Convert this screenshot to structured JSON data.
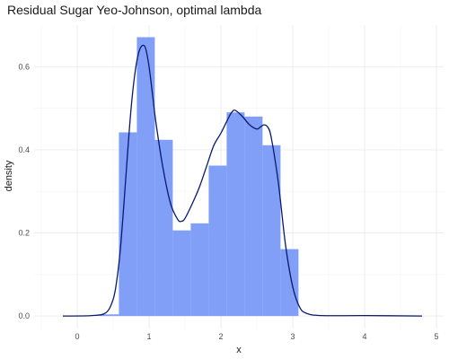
{
  "chart_data": {
    "type": "bar",
    "title": "Residual Sugar Yeo-Johnson, optimal lambda",
    "xlabel": "x",
    "ylabel": "density",
    "xlim": [
      -0.6,
      5.1
    ],
    "ylim": [
      -0.03,
      0.7
    ],
    "x_ticks": [
      0,
      1,
      2,
      3,
      4,
      5
    ],
    "y_ticks": [
      0.0,
      0.2,
      0.4,
      0.6
    ],
    "y_tick_labels": [
      "0.0",
      "0.2",
      "0.4",
      "0.6"
    ],
    "grid": true,
    "histogram": {
      "bin_width": 0.25,
      "bins": [
        {
          "x_start": 0.33,
          "x_end": 0.58,
          "density": 0.004
        },
        {
          "x_start": 0.58,
          "x_end": 0.83,
          "density": 0.442
        },
        {
          "x_start": 0.83,
          "x_end": 1.08,
          "density": 0.671
        },
        {
          "x_start": 1.08,
          "x_end": 1.33,
          "density": 0.424
        },
        {
          "x_start": 1.33,
          "x_end": 1.58,
          "density": 0.206
        },
        {
          "x_start": 1.58,
          "x_end": 1.83,
          "density": 0.223
        },
        {
          "x_start": 1.83,
          "x_end": 2.08,
          "density": 0.362
        },
        {
          "x_start": 2.08,
          "x_end": 2.33,
          "density": 0.49
        },
        {
          "x_start": 2.33,
          "x_end": 2.58,
          "density": 0.48
        },
        {
          "x_start": 2.58,
          "x_end": 2.83,
          "density": 0.411
        },
        {
          "x_start": 2.83,
          "x_end": 3.08,
          "density": 0.161
        }
      ]
    },
    "density_curve": {
      "x": [
        -0.2,
        0.2,
        0.4,
        0.5,
        0.55,
        0.6,
        0.65,
        0.7,
        0.75,
        0.8,
        0.85,
        0.9,
        0.95,
        1.0,
        1.05,
        1.1,
        1.2,
        1.3,
        1.4,
        1.45,
        1.5,
        1.6,
        1.7,
        1.8,
        1.9,
        2.0,
        2.1,
        2.15,
        2.2,
        2.3,
        2.4,
        2.5,
        2.55,
        2.6,
        2.65,
        2.7,
        2.8,
        2.9,
        3.0,
        3.1,
        3.2,
        3.4,
        4.0,
        4.8
      ],
      "y": [
        0.0,
        0.001,
        0.008,
        0.04,
        0.085,
        0.16,
        0.27,
        0.39,
        0.5,
        0.58,
        0.63,
        0.65,
        0.645,
        0.6,
        0.53,
        0.46,
        0.35,
        0.27,
        0.232,
        0.228,
        0.235,
        0.27,
        0.31,
        0.36,
        0.41,
        0.44,
        0.475,
        0.49,
        0.495,
        0.48,
        0.46,
        0.45,
        0.455,
        0.46,
        0.455,
        0.43,
        0.32,
        0.17,
        0.07,
        0.02,
        0.006,
        0.001,
        0.001,
        0.0
      ]
    },
    "colors": {
      "bar": "#829ff8",
      "curve": "#0a1a6e",
      "title": "#1a1a1a"
    }
  }
}
